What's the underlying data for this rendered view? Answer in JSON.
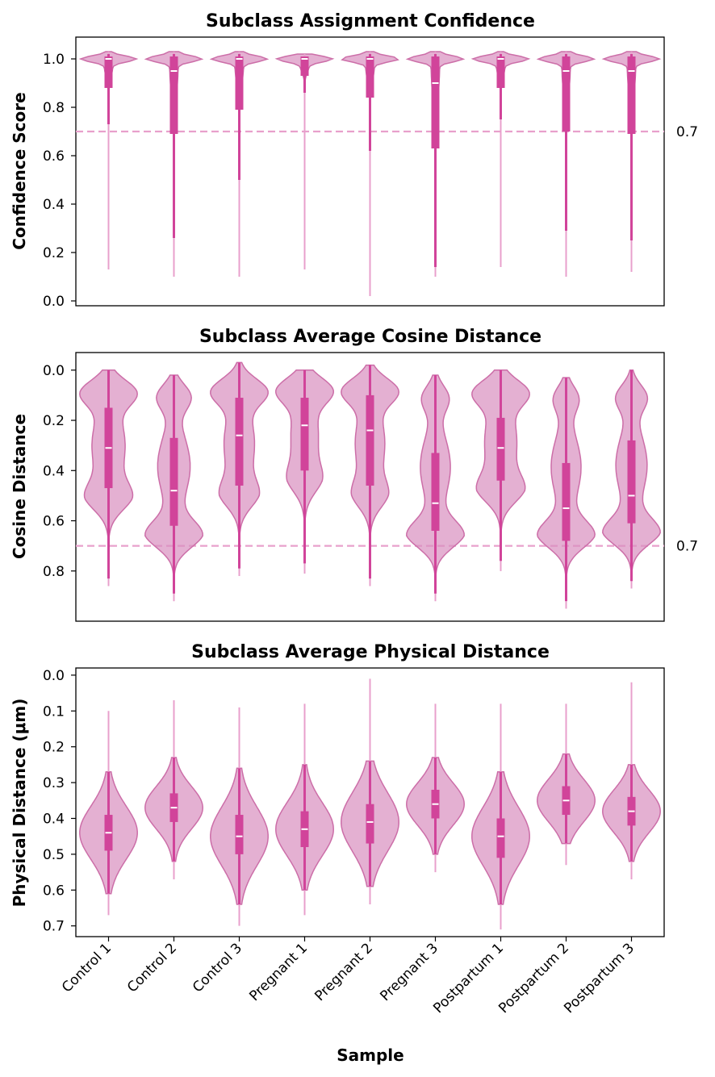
{
  "chart_data": {
    "type": "violin",
    "categories": [
      "Control 1",
      "Control 2",
      "Control 3",
      "Pregnant 1",
      "Pregnant 2",
      "Pregnant 3",
      "Postpartum 1",
      "Postpartum 2",
      "Postpartum 3"
    ],
    "xlabel": "Sample",
    "colors": {
      "violin": "#d98fbf",
      "violin_edge": "#cc6ea8",
      "box": "#d1449a",
      "whisker": "#d1449a",
      "median": "#ffffff",
      "threshold": "#e8a0cc"
    },
    "panels": [
      {
        "title": "Subclass Assignment Confidence",
        "ylabel": "Confidence Score",
        "ylim": [
          -0.02,
          1.09
        ],
        "invert_y": false,
        "yticks": [
          0.0,
          0.2,
          0.4,
          0.6,
          0.8,
          1.0
        ],
        "ytick_labels": [
          "0.0",
          "0.2",
          "0.4",
          "0.6",
          "0.8",
          "1.0"
        ],
        "threshold": 0.7,
        "threshold_label": "0.7",
        "stats": [
          {
            "min": 0.13,
            "q1": 0.88,
            "median": 1.0,
            "q3": 1.01,
            "max": 1.03,
            "wlo": 0.73
          },
          {
            "min": 0.1,
            "q1": 0.69,
            "median": 0.95,
            "q3": 1.01,
            "max": 1.03,
            "wlo": 0.26
          },
          {
            "min": 0.1,
            "q1": 0.79,
            "median": 1.0,
            "q3": 1.01,
            "max": 1.03,
            "wlo": 0.5
          },
          {
            "min": 0.13,
            "q1": 0.93,
            "median": 1.0,
            "q3": 1.01,
            "max": 1.02,
            "wlo": 0.86
          },
          {
            "min": 0.02,
            "q1": 0.84,
            "median": 1.0,
            "q3": 1.01,
            "max": 1.03,
            "wlo": 0.62
          },
          {
            "min": 0.1,
            "q1": 0.63,
            "median": 0.9,
            "q3": 1.01,
            "max": 1.03,
            "wlo": 0.14
          },
          {
            "min": 0.14,
            "q1": 0.88,
            "median": 1.0,
            "q3": 1.01,
            "max": 1.03,
            "wlo": 0.75
          },
          {
            "min": 0.1,
            "q1": 0.7,
            "median": 0.95,
            "q3": 1.01,
            "max": 1.03,
            "wlo": 0.29
          },
          {
            "min": 0.12,
            "q1": 0.69,
            "median": 0.95,
            "q3": 1.01,
            "max": 1.03,
            "wlo": 0.25
          }
        ]
      },
      {
        "title": "Subclass Average Cosine Distance",
        "ylabel": "Cosine Distance",
        "ylim": [
          -0.07,
          1.0
        ],
        "invert_y": true,
        "yticks": [
          0.0,
          0.2,
          0.4,
          0.6,
          0.8
        ],
        "ytick_labels": [
          "0.0",
          "0.2",
          "0.4",
          "0.6",
          "0.8"
        ],
        "threshold": 0.7,
        "threshold_label": "0.7",
        "stats": [
          {
            "min": 0.0,
            "q1": 0.15,
            "median": 0.31,
            "q3": 0.47,
            "max": 0.86,
            "whi": 0.83
          },
          {
            "min": 0.02,
            "q1": 0.27,
            "median": 0.48,
            "q3": 0.62,
            "max": 0.92,
            "whi": 0.89
          },
          {
            "min": -0.03,
            "q1": 0.11,
            "median": 0.26,
            "q3": 0.46,
            "max": 0.82,
            "whi": 0.79
          },
          {
            "min": 0.0,
            "q1": 0.11,
            "median": 0.22,
            "q3": 0.4,
            "max": 0.81,
            "whi": 0.77
          },
          {
            "min": -0.02,
            "q1": 0.1,
            "median": 0.24,
            "q3": 0.46,
            "max": 0.86,
            "whi": 0.83
          },
          {
            "min": 0.02,
            "q1": 0.33,
            "median": 0.53,
            "q3": 0.64,
            "max": 0.92,
            "whi": 0.89
          },
          {
            "min": 0.0,
            "q1": 0.19,
            "median": 0.31,
            "q3": 0.44,
            "max": 0.8,
            "whi": 0.76
          },
          {
            "min": 0.03,
            "q1": 0.37,
            "median": 0.55,
            "q3": 0.68,
            "max": 0.95,
            "whi": 0.92
          },
          {
            "min": 0.0,
            "q1": 0.28,
            "median": 0.5,
            "q3": 0.61,
            "max": 0.87,
            "whi": 0.84
          }
        ]
      },
      {
        "title": "Subclass Average Physical Distance",
        "ylabel": "Physical Distance (μm)",
        "ylim": [
          -0.02,
          0.73
        ],
        "invert_y": true,
        "yticks": [
          0.0,
          0.1,
          0.2,
          0.3,
          0.4,
          0.5,
          0.6,
          0.7
        ],
        "ytick_labels": [
          "0.0",
          "0.1",
          "0.2",
          "0.3",
          "0.4",
          "0.5",
          "0.6",
          "0.7"
        ],
        "threshold": null,
        "stats": [
          {
            "min": 0.1,
            "q1": 0.39,
            "median": 0.44,
            "q3": 0.49,
            "max": 0.67,
            "vtop": 0.27,
            "vbot": 0.61
          },
          {
            "min": 0.07,
            "q1": 0.33,
            "median": 0.37,
            "q3": 0.41,
            "max": 0.57,
            "vtop": 0.23,
            "vbot": 0.52
          },
          {
            "min": 0.09,
            "q1": 0.39,
            "median": 0.45,
            "q3": 0.5,
            "max": 0.7,
            "vtop": 0.26,
            "vbot": 0.64
          },
          {
            "min": 0.08,
            "q1": 0.38,
            "median": 0.43,
            "q3": 0.48,
            "max": 0.67,
            "vtop": 0.25,
            "vbot": 0.6
          },
          {
            "min": 0.01,
            "q1": 0.36,
            "median": 0.41,
            "q3": 0.47,
            "max": 0.64,
            "vtop": 0.24,
            "vbot": 0.59
          },
          {
            "min": 0.08,
            "q1": 0.32,
            "median": 0.36,
            "q3": 0.4,
            "max": 0.55,
            "vtop": 0.23,
            "vbot": 0.5
          },
          {
            "min": 0.08,
            "q1": 0.4,
            "median": 0.45,
            "q3": 0.51,
            "max": 0.71,
            "vtop": 0.27,
            "vbot": 0.64
          },
          {
            "min": 0.08,
            "q1": 0.31,
            "median": 0.35,
            "q3": 0.39,
            "max": 0.53,
            "vtop": 0.22,
            "vbot": 0.47
          },
          {
            "min": 0.02,
            "q1": 0.34,
            "median": 0.38,
            "q3": 0.42,
            "max": 0.57,
            "vtop": 0.25,
            "vbot": 0.52
          }
        ]
      }
    ]
  }
}
